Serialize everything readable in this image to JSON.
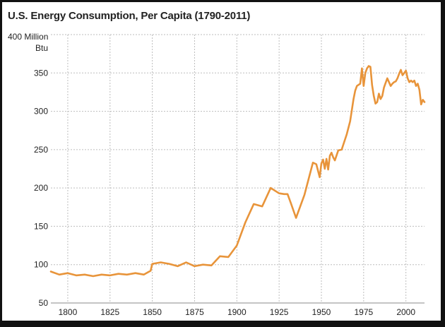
{
  "chart_data": {
    "type": "line",
    "title": "U.S. Energy Consumption, Per Capita (1790-2011)",
    "y_unit_lines": [
      "400 Million",
      "Btu"
    ],
    "xlim": [
      1790,
      2011
    ],
    "ylim": [
      50,
      400
    ],
    "x_ticks": [
      1800,
      1825,
      1850,
      1875,
      1900,
      1925,
      1950,
      1975,
      2000
    ],
    "y_ticks": [
      50,
      100,
      150,
      200,
      250,
      300,
      350
    ],
    "grid": true,
    "line_color": "#e8943a",
    "series": [
      {
        "x": [
          1790,
          1795,
          1800,
          1805,
          1810,
          1815,
          1820,
          1825,
          1830,
          1835,
          1840,
          1845,
          1849,
          1850,
          1855,
          1860,
          1865,
          1870,
          1875,
          1880,
          1885,
          1890,
          1895,
          1900,
          1905,
          1910,
          1915,
          1920,
          1925,
          1928,
          1930,
          1932,
          1935,
          1940,
          1945,
          1947,
          1949,
          1950,
          1951,
          1952,
          1953,
          1954,
          1955,
          1956,
          1957,
          1958,
          1960,
          1962,
          1965,
          1967,
          1969,
          1970,
          1971,
          1973,
          1974,
          1975,
          1976,
          1977,
          1978,
          1979,
          1980,
          1981,
          1982,
          1983,
          1984,
          1985,
          1986,
          1987,
          1988,
          1989,
          1990,
          1991,
          1992,
          1993,
          1994,
          1995,
          1996,
          1997,
          1998,
          1999,
          2000,
          2001,
          2002,
          2003,
          2004,
          2005,
          2006,
          2007,
          2008,
          2009,
          2010,
          2011
        ],
        "values": [
          91,
          87,
          89,
          86,
          87,
          85,
          87,
          86,
          88,
          87,
          89,
          87,
          92,
          101,
          103,
          101,
          98,
          103,
          98,
          100,
          99,
          111,
          110,
          125,
          155,
          179,
          176,
          200,
          193,
          192,
          192,
          180,
          161,
          191,
          233,
          231,
          214,
          232,
          237,
          225,
          238,
          224,
          242,
          246,
          240,
          236,
          249,
          250,
          270,
          287,
          316,
          327,
          333,
          336,
          356,
          333,
          350,
          356,
          359,
          358,
          334,
          320,
          310,
          312,
          323,
          316,
          320,
          331,
          337,
          343,
          338,
          333,
          336,
          338,
          339,
          343,
          349,
          354,
          347,
          350,
          353,
          343,
          338,
          340,
          338,
          340,
          333,
          336,
          328,
          309,
          315,
          312
        ]
      }
    ]
  }
}
